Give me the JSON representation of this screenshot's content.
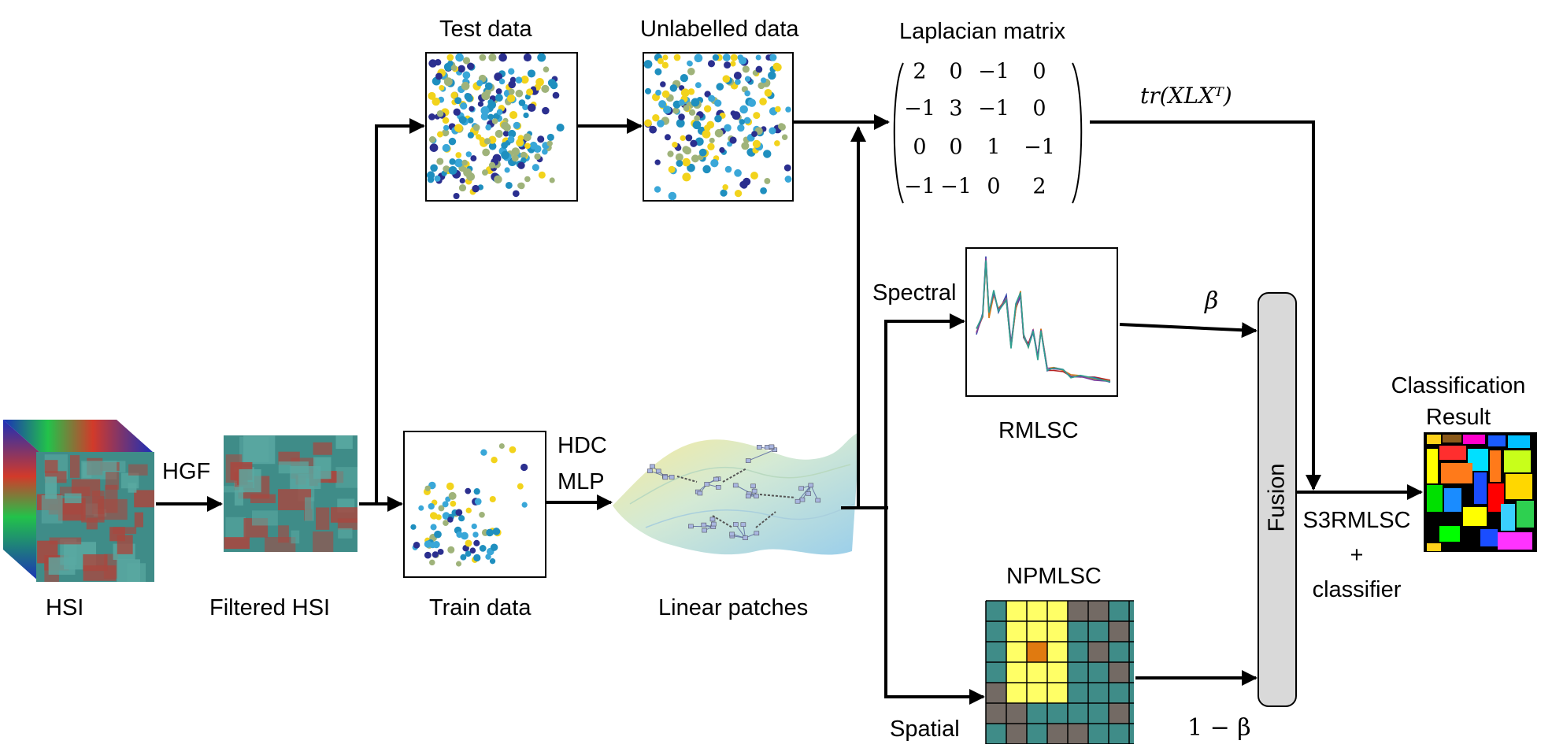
{
  "labels": {
    "hsi": "HSI",
    "hgf": "HGF",
    "filtered_hsi": "Filtered HSI",
    "train_data": "Train data",
    "hdc": "HDC",
    "mlp": "MLP",
    "linear_patches": "Linear patches",
    "test_data": "Test data",
    "unlabelled_data": "Unlabelled data",
    "laplacian_matrix": "Laplacian matrix",
    "trace_term": "tr(XLXᵀ)",
    "spectral": "Spectral",
    "spatial": "Spatial",
    "rmlsc": "RMLSC",
    "npmlsc": "NPMLSC",
    "beta": "β",
    "one_minus_beta": "1 − β",
    "fusion": "Fusion",
    "output_method_line1": "S3RMLSC",
    "output_method_line2": "+",
    "output_method_line3": "classifier",
    "classification_line1": "Classification",
    "classification_line2": "Result"
  },
  "laplacian_matrix": [
    [
      "2",
      "0",
      "−1",
      "0"
    ],
    [
      "−1",
      "3",
      "−1",
      "0"
    ],
    [
      "0",
      "0",
      "1",
      "−1"
    ],
    [
      "−1",
      "−1",
      "0",
      "2"
    ]
  ],
  "colors": {
    "hsi_teal": "#3f8c88",
    "hsi_red": "#a8473f",
    "hsi_blue": "#1b2fb8",
    "hsi_green": "#22c24a",
    "scatter": [
      "#2b2f8f",
      "#1f8fbf",
      "#9fb37a",
      "#f2d31c",
      "#3aa7d8"
    ],
    "fusion_fill": "#d9d9d9",
    "manifold_yellow": "#f2e58a",
    "manifold_blue": "#9fd2e8",
    "spectra": [
      "#b52020",
      "#3344aa",
      "#d07a1a",
      "#7a3ea0",
      "#2f9f8f"
    ],
    "grid_yellow": "#ffff66",
    "grid_orange": "#e07a10"
  }
}
